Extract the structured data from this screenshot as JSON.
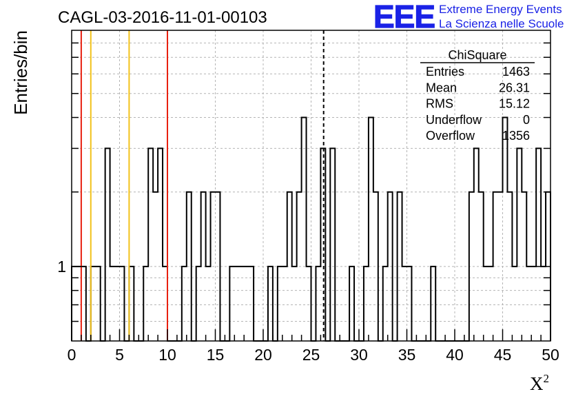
{
  "chart_data": {
    "type": "histogram",
    "title": "CAGL-03-2016-11-01-00103",
    "xlabel": "X",
    "xlabel_superscript": "2",
    "ylabel": "Entries/bin",
    "xlim": [
      0,
      50
    ],
    "ylim": [
      0.5,
      9
    ],
    "y_log_scale": true,
    "grid": true,
    "x_ticks": [
      0,
      5,
      10,
      15,
      20,
      25,
      30,
      35,
      40,
      45,
      50
    ],
    "y_tick_labels": [
      {
        "value": 1,
        "label": "1"
      }
    ],
    "bin_width": 0.5,
    "bins": [
      {
        "x0": 0.0,
        "y": 1
      },
      {
        "x0": 0.5,
        "y": 1
      },
      {
        "x0": 1.0,
        "y": 1
      },
      {
        "x0": 2.0,
        "y": 1
      },
      {
        "x0": 2.5,
        "y": 1
      },
      {
        "x0": 3.5,
        "y": 3
      },
      {
        "x0": 4.0,
        "y": 1
      },
      {
        "x0": 4.5,
        "y": 1
      },
      {
        "x0": 5.0,
        "y": 1
      },
      {
        "x0": 6.0,
        "y": 1
      },
      {
        "x0": 7.5,
        "y": 1
      },
      {
        "x0": 8.0,
        "y": 3
      },
      {
        "x0": 8.5,
        "y": 2
      },
      {
        "x0": 9.0,
        "y": 3
      },
      {
        "x0": 9.5,
        "y": 1
      },
      {
        "x0": 11.5,
        "y": 1
      },
      {
        "x0": 12.0,
        "y": 2
      },
      {
        "x0": 13.0,
        "y": 1
      },
      {
        "x0": 13.5,
        "y": 2
      },
      {
        "x0": 14.0,
        "y": 1
      },
      {
        "x0": 14.5,
        "y": 2
      },
      {
        "x0": 15.0,
        "y": 2
      },
      {
        "x0": 16.5,
        "y": 1
      },
      {
        "x0": 17.0,
        "y": 1
      },
      {
        "x0": 17.5,
        "y": 1
      },
      {
        "x0": 18.0,
        "y": 1
      },
      {
        "x0": 18.5,
        "y": 1
      },
      {
        "x0": 20.5,
        "y": 1
      },
      {
        "x0": 21.5,
        "y": 1
      },
      {
        "x0": 22.0,
        "y": 1
      },
      {
        "x0": 22.5,
        "y": 2
      },
      {
        "x0": 23.0,
        "y": 1
      },
      {
        "x0": 23.5,
        "y": 2
      },
      {
        "x0": 24.0,
        "y": 4
      },
      {
        "x0": 24.5,
        "y": 1
      },
      {
        "x0": 25.5,
        "y": 1
      },
      {
        "x0": 26.0,
        "y": 3
      },
      {
        "x0": 27.0,
        "y": 3
      },
      {
        "x0": 29.0,
        "y": 1
      },
      {
        "x0": 30.5,
        "y": 1
      },
      {
        "x0": 31.0,
        "y": 4
      },
      {
        "x0": 31.5,
        "y": 2
      },
      {
        "x0": 32.5,
        "y": 1
      },
      {
        "x0": 33.0,
        "y": 2
      },
      {
        "x0": 34.0,
        "y": 2
      },
      {
        "x0": 34.5,
        "y": 1
      },
      {
        "x0": 35.0,
        "y": 1
      },
      {
        "x0": 37.5,
        "y": 1
      },
      {
        "x0": 41.5,
        "y": 2
      },
      {
        "x0": 42.0,
        "y": 3
      },
      {
        "x0": 42.5,
        "y": 2
      },
      {
        "x0": 43.0,
        "y": 1
      },
      {
        "x0": 43.5,
        "y": 1
      },
      {
        "x0": 44.0,
        "y": 2
      },
      {
        "x0": 44.5,
        "y": 2
      },
      {
        "x0": 45.0,
        "y": 4
      },
      {
        "x0": 45.5,
        "y": 2
      },
      {
        "x0": 46.0,
        "y": 1
      },
      {
        "x0": 46.5,
        "y": 3
      },
      {
        "x0": 47.0,
        "y": 2
      },
      {
        "x0": 47.5,
        "y": 1
      },
      {
        "x0": 48.0,
        "y": 1
      },
      {
        "x0": 48.5,
        "y": 3
      },
      {
        "x0": 49.0,
        "y": 1
      },
      {
        "x0": 49.5,
        "y": 2
      }
    ],
    "vertical_lines": [
      {
        "x": 1,
        "color": "#e8200f",
        "style": "solid"
      },
      {
        "x": 2,
        "color": "#f2c21a",
        "style": "solid"
      },
      {
        "x": 6,
        "color": "#f2c21a",
        "style": "solid"
      },
      {
        "x": 10,
        "color": "#e8200f",
        "style": "solid"
      },
      {
        "x": 26.31,
        "color": "#000000",
        "style": "dashed"
      }
    ],
    "stats_box": {
      "title": "ChiSquare",
      "rows": [
        {
          "label": "Entries",
          "value": "1463"
        },
        {
          "label": "Mean",
          "value": "26.31"
        },
        {
          "label": "RMS",
          "value": "15.12"
        },
        {
          "label": "Underflow",
          "value": "0"
        },
        {
          "label": "Overflow",
          "value": "1356"
        }
      ]
    }
  },
  "logo": {
    "mark": "EEE",
    "line1": "Extreme Energy Events",
    "line2": "La Scienza nelle Scuole",
    "color": "#1a22e6"
  }
}
